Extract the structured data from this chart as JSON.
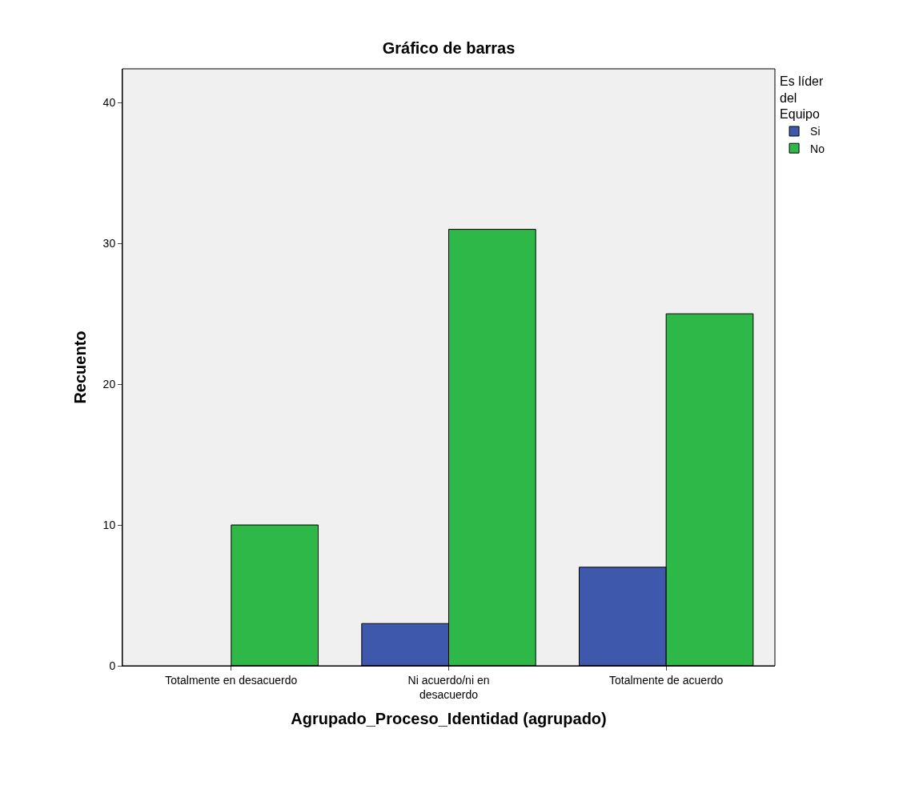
{
  "chart_data": {
    "type": "bar",
    "title": "Gráfico de barras",
    "xlabel": "Agrupado_Proceso_Identidad (agrupado)",
    "ylabel": "Recuento",
    "legend_title": "Es líder del Equipo",
    "categories": [
      "Totalmente en desacuerdo",
      "Ni acuerdo/ni en desacuerdo",
      "Totalmente de acuerdo"
    ],
    "series": [
      {
        "name": "Si",
        "color": "#3e58ac",
        "values": [
          null,
          3,
          7
        ]
      },
      {
        "name": "No",
        "color": "#2eb848",
        "values": [
          10,
          31,
          25
        ]
      }
    ],
    "ylim": [
      0,
      42.4
    ],
    "yticks": [
      0,
      10,
      20,
      30,
      40
    ],
    "grid": false,
    "legend": "top right"
  }
}
